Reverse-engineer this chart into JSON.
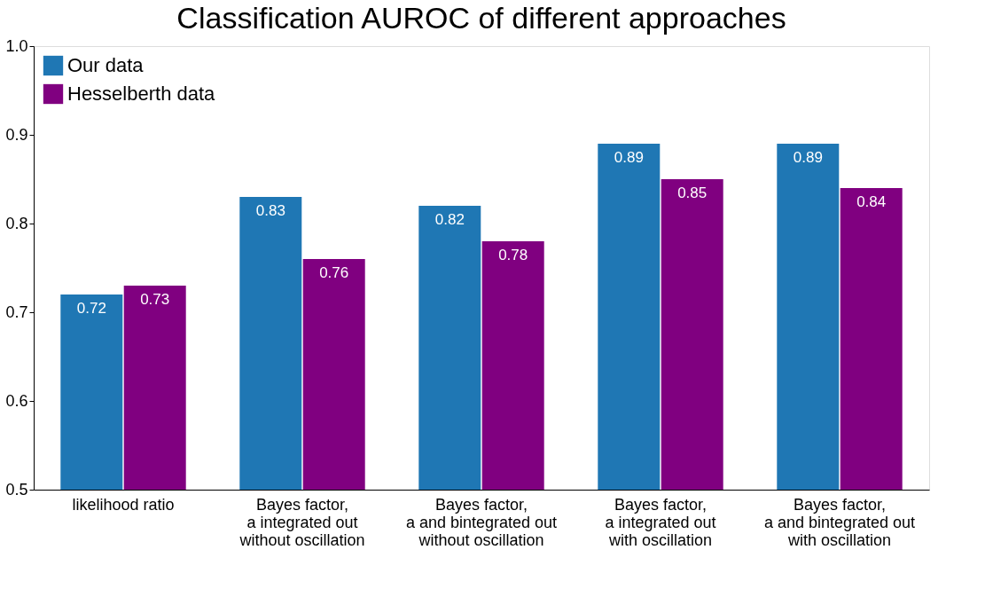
{
  "chart_data": {
    "type": "bar",
    "title": "Classification AUROC of different approaches",
    "categories": [
      "likelihood ratio",
      "Bayes factor,\na integrated out\nwithout oscillation",
      "Bayes factor,\na and bintegrated out\nwithout oscillation",
      "Bayes factor,\na integrated out\nwith oscillation",
      "Bayes factor,\na and bintegrated out\nwith oscillation"
    ],
    "series": [
      {
        "name": "Our data",
        "color": "#1f77b4",
        "values": [
          0.72,
          0.83,
          0.82,
          0.89,
          0.89
        ]
      },
      {
        "name": "Hesselberth data",
        "color": "#800080",
        "values": [
          0.73,
          0.76,
          0.78,
          0.85,
          0.84
        ]
      }
    ],
    "ylim": [
      0.5,
      1.0
    ],
    "yticks": [
      0.5,
      0.6,
      0.7,
      0.8,
      0.9,
      {
        "value": 1.0,
        "label": "1.0"
      }
    ],
    "grid": false,
    "legend": "top left",
    "data_labels": true
  }
}
